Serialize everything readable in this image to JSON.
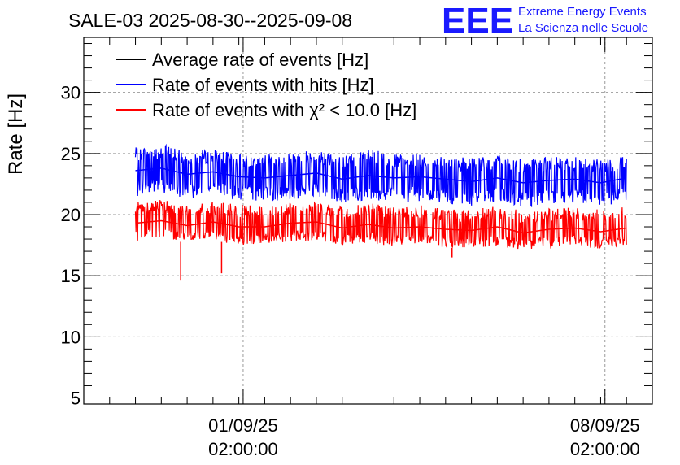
{
  "chart_data": {
    "type": "line",
    "title": "SALE-03 2025-08-30--2025-09-08",
    "ylabel": "Rate [Hz]",
    "xlabel": "",
    "x_axis": "date",
    "x_range": [
      "2025-08-29T00:00:00",
      "2025-09-09T00:00:00"
    ],
    "ylim": [
      4.5,
      34.5
    ],
    "y_ticks": [
      5,
      10,
      15,
      20,
      25,
      30
    ],
    "x_ticks": [
      {
        "date": "2025-09-01T02:00:00",
        "line1": "01/09/25",
        "line2": "02:00:00"
      },
      {
        "date": "2025-09-08T02:00:00",
        "line1": "08/09/25",
        "line2": "02:00:00"
      }
    ],
    "grid": true,
    "legend_position": "top-left",
    "series": [
      {
        "name": "Average rate of events [Hz]",
        "color": "#000000",
        "values": []
      },
      {
        "name": "Rate of events with hits [Hz]",
        "color": "#0000ff",
        "x": [
          "2025-08-30T00:00:00",
          "2025-08-30T12:00:00",
          "2025-08-31T00:00:00",
          "2025-08-31T12:00:00",
          "2025-09-01T00:00:00",
          "2025-09-01T12:00:00",
          "2025-09-02T00:00:00",
          "2025-09-02T12:00:00",
          "2025-09-03T00:00:00",
          "2025-09-03T12:00:00",
          "2025-09-04T00:00:00",
          "2025-09-04T12:00:00",
          "2025-09-05T00:00:00",
          "2025-09-05T12:00:00",
          "2025-09-06T00:00:00",
          "2025-09-06T12:00:00",
          "2025-09-07T00:00:00",
          "2025-09-07T12:00:00",
          "2025-09-08T00:00:00",
          "2025-09-08T12:00:00"
        ],
        "values": [
          23.6,
          23.8,
          23.3,
          23.5,
          23.1,
          23.0,
          23.2,
          23.4,
          22.9,
          23.2,
          23.0,
          23.1,
          22.9,
          22.7,
          23.0,
          22.6,
          22.8,
          22.9,
          22.6,
          23.0
        ],
        "band_low": [
          21.5,
          21.8,
          21.3,
          21.4,
          21.2,
          21.1,
          21.2,
          21.3,
          20.9,
          21.2,
          21.0,
          21.1,
          20.9,
          20.7,
          21.0,
          20.6,
          20.8,
          20.9,
          20.7,
          21.0
        ],
        "band_high": [
          25.5,
          25.8,
          25.2,
          25.3,
          25.0,
          24.9,
          25.1,
          25.3,
          24.8,
          25.4,
          24.9,
          25.0,
          24.8,
          24.6,
          24.9,
          24.5,
          24.7,
          24.8,
          24.6,
          24.8
        ]
      },
      {
        "name": "Rate of events with χ² < 10.0 [Hz]",
        "color": "#ff0000",
        "x": [
          "2025-08-30T00:00:00",
          "2025-08-30T12:00:00",
          "2025-08-31T00:00:00",
          "2025-08-31T12:00:00",
          "2025-09-01T00:00:00",
          "2025-09-01T12:00:00",
          "2025-09-02T00:00:00",
          "2025-09-02T12:00:00",
          "2025-09-03T00:00:00",
          "2025-09-03T12:00:00",
          "2025-09-04T00:00:00",
          "2025-09-04T12:00:00",
          "2025-09-05T00:00:00",
          "2025-09-05T12:00:00",
          "2025-09-06T00:00:00",
          "2025-09-06T12:00:00",
          "2025-09-07T00:00:00",
          "2025-09-07T12:00:00",
          "2025-09-08T00:00:00",
          "2025-09-08T12:00:00"
        ],
        "values": [
          19.3,
          19.5,
          19.1,
          19.4,
          19.0,
          19.0,
          19.3,
          19.4,
          18.9,
          19.2,
          18.9,
          19.0,
          18.8,
          18.7,
          19.0,
          18.5,
          18.8,
          18.9,
          18.6,
          18.9
        ],
        "band_low": [
          17.8,
          18.0,
          17.7,
          17.9,
          17.5,
          17.6,
          17.8,
          17.9,
          17.4,
          17.7,
          17.4,
          17.5,
          17.3,
          17.2,
          17.5,
          17.1,
          17.3,
          17.4,
          17.2,
          17.5
        ],
        "band_high": [
          21.0,
          21.3,
          20.8,
          21.1,
          20.8,
          20.7,
          21.0,
          21.2,
          20.6,
          21.0,
          20.6,
          20.8,
          20.5,
          20.4,
          20.7,
          20.3,
          20.5,
          20.6,
          20.4,
          20.7
        ],
        "dips": [
          {
            "x": "2025-08-30T21:00:00",
            "y": 14.6
          },
          {
            "x": "2025-08-31T16:00:00",
            "y": 15.2
          },
          {
            "x": "2025-09-05T03:00:00",
            "y": 16.5
          }
        ]
      }
    ]
  },
  "logo": {
    "mark": "EEE",
    "line1": "Extreme Energy Events",
    "line2": "La Scienza nelle Scuole",
    "color": "#1a1aff"
  }
}
